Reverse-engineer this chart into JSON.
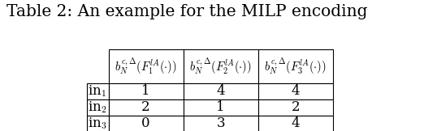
{
  "title": "Table 2: An example for the MILP encoding",
  "col_headers": [
    "$b_N^{c,\\Delta}(F_1^{lA}(\\cdot))$",
    "$b_N^{c,\\Delta}(F_2^{lA}(\\cdot))$",
    "$b_N^{c,\\Delta}(F_3^{lA}(\\cdot))$"
  ],
  "row_headers": [
    "in$_1$",
    "in$_2$",
    "in$_3$"
  ],
  "data": [
    [
      "1",
      "4",
      "4"
    ],
    [
      "2",
      "1",
      "2"
    ],
    [
      "0",
      "3",
      "4"
    ]
  ],
  "background_color": "#ffffff",
  "title_fontsize": 14.5,
  "cell_fontsize": 12,
  "header_fontsize": 10.5,
  "fig_width": 5.38,
  "fig_height": 1.62,
  "dpi": 100
}
